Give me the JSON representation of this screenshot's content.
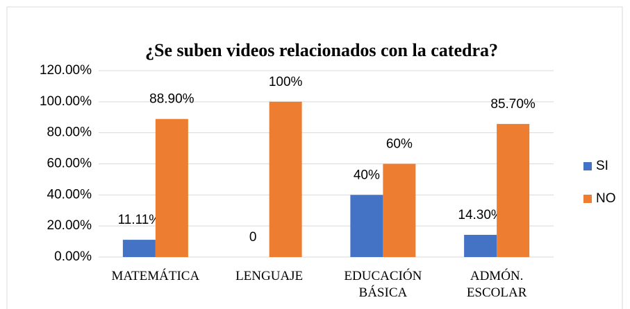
{
  "chart_data": {
    "type": "bar",
    "title": "¿Se suben videos relacionados con la catedra?",
    "categories": [
      "MATEMÁTICA",
      "LENGUAJE",
      "EDUCACIÓN BÁSICA",
      "ADMÓN. ESCOLAR"
    ],
    "series": [
      {
        "name": "SI",
        "color": "#4472c4",
        "values": [
          11.11,
          0,
          40,
          14.3
        ],
        "value_labels": [
          "11.11%",
          "0",
          "40%",
          "14.30%"
        ]
      },
      {
        "name": "NO",
        "color": "#ed7d31",
        "values": [
          88.9,
          100,
          60,
          85.7
        ],
        "value_labels": [
          "88.90%",
          "100%",
          "60%",
          "85.70%"
        ]
      }
    ],
    "ylim": [
      0,
      120
    ],
    "yticks": [
      {
        "value": 0,
        "label": "0.00%"
      },
      {
        "value": 20,
        "label": "20.00%"
      },
      {
        "value": 40,
        "label": "40.00%"
      },
      {
        "value": 60,
        "label": "60.00%"
      },
      {
        "value": 80,
        "label": "80.00%"
      },
      {
        "value": 100,
        "label": "100.00%"
      },
      {
        "value": 120,
        "label": "120.00%"
      }
    ],
    "grid": true,
    "legend": "right"
  }
}
